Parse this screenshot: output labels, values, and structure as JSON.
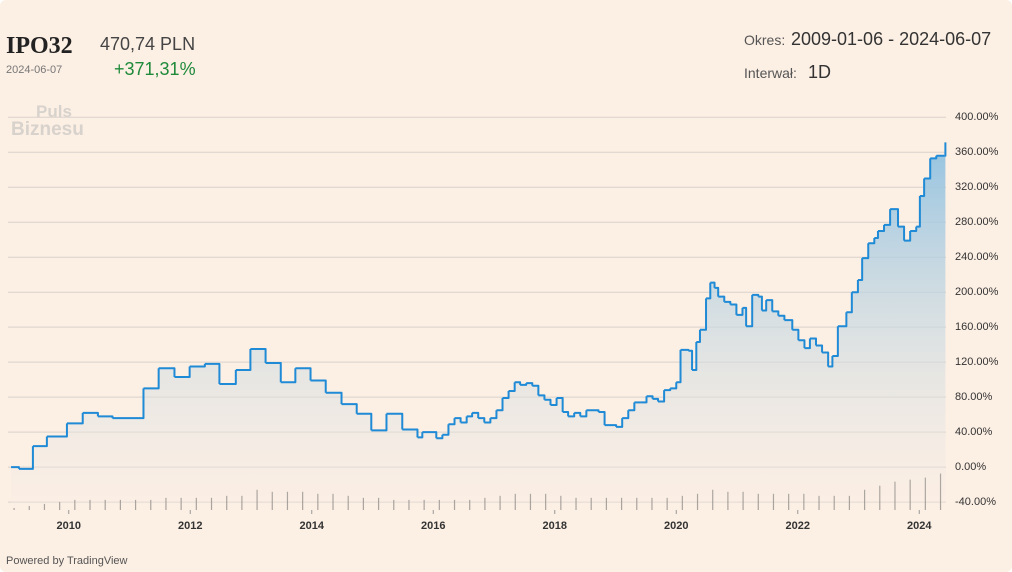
{
  "header": {
    "symbol": "IPO32",
    "date": "2024-06-07",
    "price": "470,74 PLN",
    "change": "+371,31%",
    "period_label": "Okres:",
    "period": "2009-01-06 - 2024-06-07",
    "interval_label": "Interwał:",
    "interval": "1D",
    "logo": [
      "Puls",
      "Biznesu"
    ],
    "footer": "Powered by TradingView"
  },
  "chart_data": {
    "type": "line",
    "color": "#1f8ad6",
    "grid": true,
    "xlim": [
      2009.0,
      2024.44
    ],
    "xticks": [
      2010,
      2012,
      2014,
      2016,
      2018,
      2020,
      2022,
      2024
    ],
    "ylim": [
      -49,
      414
    ],
    "yticks": [
      {
        "value": 400,
        "label": "400.00%"
      },
      {
        "value": 360,
        "label": "360.00%"
      },
      {
        "value": 320,
        "label": "320.00%"
      },
      {
        "value": 280,
        "label": "280.00%"
      },
      {
        "value": 240,
        "label": "240.00%"
      },
      {
        "value": 200,
        "label": "200.00%"
      },
      {
        "value": 160,
        "label": "160.00%"
      },
      {
        "value": 120,
        "label": "120.00%"
      },
      {
        "value": 80,
        "label": "80.00%"
      },
      {
        "value": 40,
        "label": "40.00%"
      },
      {
        "value": 0,
        "label": "0.00%"
      },
      {
        "value": -40,
        "label": "-40.00%"
      }
    ],
    "x": [
      2009.05,
      2009.18,
      2009.41,
      2009.64,
      2009.97,
      2010.23,
      2010.48,
      2010.72,
      2011.23,
      2011.48,
      2011.74,
      2011.99,
      2012.24,
      2012.48,
      2012.75,
      2012.99,
      2013.24,
      2013.49,
      2013.73,
      2013.98,
      2014.23,
      2014.49,
      2014.74,
      2014.98,
      2015.23,
      2015.49,
      2015.74,
      2015.82,
      2016.05,
      2016.15,
      2016.25,
      2016.35,
      2016.45,
      2016.55,
      2016.64,
      2016.74,
      2016.84,
      2016.94,
      2017.04,
      2017.14,
      2017.24,
      2017.34,
      2017.43,
      2017.53,
      2017.63,
      2017.73,
      2017.83,
      2017.93,
      2018.03,
      2018.13,
      2018.22,
      2018.32,
      2018.42,
      2018.52,
      2018.72,
      2018.82,
      2019.01,
      2019.11,
      2019.21,
      2019.31,
      2019.41,
      2019.51,
      2019.61,
      2019.7,
      2019.8,
      2019.9,
      2020.0,
      2020.07,
      2020.2,
      2020.26,
      2020.33,
      2020.39,
      2020.49,
      2020.56,
      2020.63,
      2020.69,
      2020.79,
      2020.89,
      2020.99,
      2021.09,
      2021.15,
      2021.25,
      2021.35,
      2021.41,
      2021.48,
      2021.58,
      2021.68,
      2021.78,
      2021.91,
      2022.01,
      2022.11,
      2022.2,
      2022.3,
      2022.4,
      2022.5,
      2022.57,
      2022.66,
      2022.8,
      2022.89,
      2022.99,
      2023.06,
      2023.16,
      2023.26,
      2023.32,
      2023.42,
      2023.52,
      2023.65,
      2023.75,
      2023.85,
      2023.95,
      2024.01,
      2024.08,
      2024.18,
      2024.28,
      2024.41,
      2024.43
    ],
    "values": [
      0,
      -2,
      24,
      35,
      50,
      62,
      58,
      56,
      90,
      113,
      103,
      115,
      118,
      95,
      111,
      135,
      119,
      97,
      113,
      99,
      85,
      72,
      61,
      42,
      61,
      43,
      34,
      40,
      33,
      37,
      49,
      56,
      51,
      58,
      62,
      56,
      51,
      56,
      65,
      79,
      87,
      97,
      94,
      96,
      93,
      82,
      77,
      71,
      79,
      63,
      58,
      62,
      58,
      65,
      63,
      48,
      46,
      56,
      65,
      74,
      74,
      81,
      78,
      75,
      88,
      90,
      97,
      134,
      133,
      111,
      143,
      157,
      193,
      211,
      205,
      195,
      189,
      186,
      174,
      182,
      161,
      197,
      195,
      179,
      191,
      178,
      173,
      168,
      157,
      145,
      136,
      147,
      139,
      131,
      115,
      127,
      161,
      177,
      200,
      214,
      239,
      256,
      262,
      270,
      277,
      295,
      275,
      259,
      270,
      275,
      310,
      330,
      353,
      356,
      356,
      371.31
    ],
    "volume": {
      "color": "#555555",
      "axis": "y2",
      "y2lim": [
        0,
        100
      ],
      "x": [
        2009.1,
        2009.35,
        2009.6,
        2009.85,
        2010.1,
        2010.35,
        2010.6,
        2010.85,
        2011.1,
        2011.35,
        2011.6,
        2011.85,
        2012.1,
        2012.35,
        2012.6,
        2012.85,
        2013.1,
        2013.35,
        2013.6,
        2013.85,
        2014.1,
        2014.35,
        2014.6,
        2014.85,
        2015.1,
        2015.35,
        2015.6,
        2015.85,
        2016.1,
        2016.35,
        2016.6,
        2016.85,
        2017.1,
        2017.35,
        2017.6,
        2017.85,
        2018.1,
        2018.35,
        2018.6,
        2018.85,
        2019.1,
        2019.35,
        2019.6,
        2019.85,
        2020.1,
        2020.35,
        2020.6,
        2020.85,
        2021.1,
        2021.35,
        2021.6,
        2021.85,
        2022.1,
        2022.35,
        2022.6,
        2022.85,
        2023.1,
        2023.35,
        2023.6,
        2023.85,
        2024.1,
        2024.35
      ],
      "values": [
        0.5,
        1,
        1.5,
        2,
        2.5,
        2.5,
        2.5,
        2.5,
        2.5,
        2.5,
        3,
        3,
        3,
        3,
        3.5,
        3.5,
        5,
        4.5,
        4.5,
        4.5,
        4,
        4,
        3.5,
        3,
        3,
        2.5,
        2.5,
        2.5,
        2.5,
        2.5,
        2.5,
        3,
        3.5,
        4,
        4,
        4,
        3.5,
        3,
        3,
        3,
        3,
        3,
        3,
        3,
        3.5,
        4,
        5,
        4.5,
        4.5,
        4,
        4,
        4,
        4,
        3.5,
        3.5,
        3.5,
        5,
        6,
        7,
        7.5,
        8,
        9
      ]
    }
  }
}
